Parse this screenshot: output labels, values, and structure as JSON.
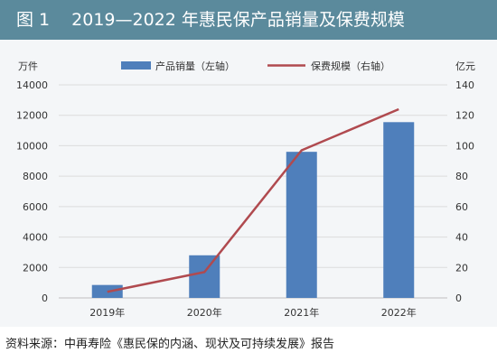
{
  "figure": {
    "label": "图 1",
    "title": "2019—2022 年惠民保产品销量及保费规模"
  },
  "source": "资料来源：中再寿险《惠民保的内涵、现状及可持续发展》报告",
  "colors": {
    "title_bar": "#5b8a9c",
    "background": "#f4f6f8",
    "bar": "#4f7fbb",
    "line": "#b04a4f"
  },
  "chart_data": {
    "type": "bar",
    "categories": [
      "2019年",
      "2020年",
      "2021年",
      "2022年"
    ],
    "series": [
      {
        "name": "产品销量（左轴）",
        "type": "bar",
        "axis": "left",
        "values": [
          850,
          2800,
          9600,
          11550
        ]
      },
      {
        "name": "保费规模（右轴）",
        "type": "line",
        "axis": "right",
        "values": [
          4,
          17,
          97,
          124
        ]
      }
    ],
    "ylabel_left": "万件",
    "ylabel_right": "亿元",
    "ylim_left": [
      0,
      14000
    ],
    "ylim_right": [
      0,
      140
    ],
    "yticks_left": [
      "0",
      "2000",
      "4000",
      "6000",
      "8000",
      "10000",
      "12000",
      "14000"
    ],
    "yticks_right": [
      "0",
      "20",
      "40",
      "60",
      "80",
      "100",
      "120",
      "140"
    ],
    "grid": true,
    "legend_position": "top"
  }
}
